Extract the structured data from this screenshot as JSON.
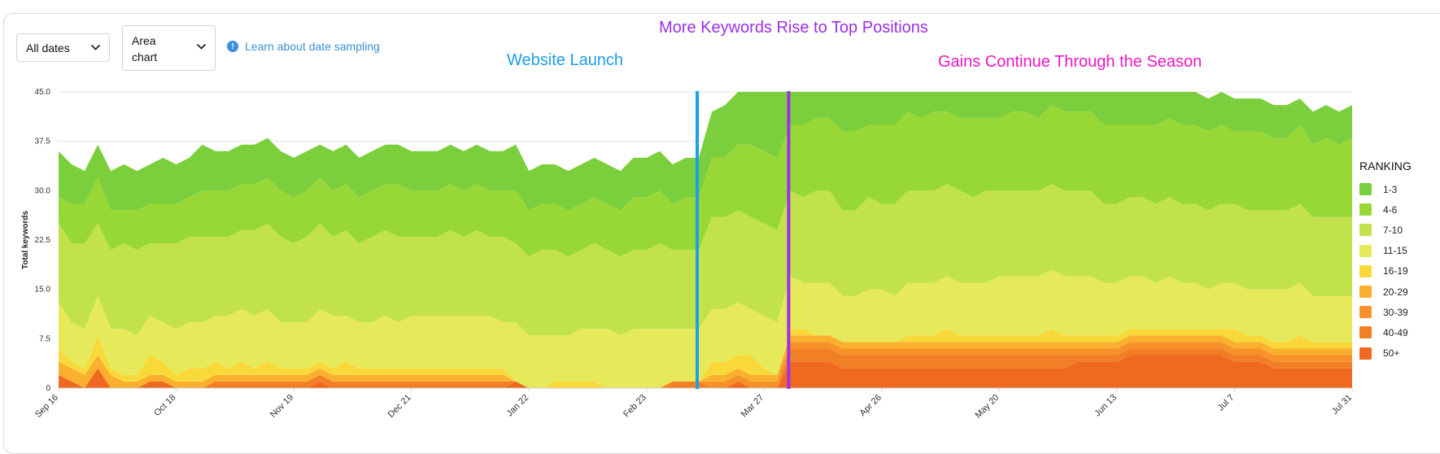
{
  "controls": {
    "dates_label": "All dates",
    "chart_type_label": "Area chart",
    "info_link": "Learn about date sampling"
  },
  "annotations": {
    "top": "More Keywords Rise to Top Positions",
    "launch": "Website Launch",
    "gains": "Gains Continue Through the Season"
  },
  "legend": {
    "title": "RANKING",
    "items": [
      {
        "label": "1-3",
        "color": "#7ccf3c"
      },
      {
        "label": "4-6",
        "color": "#98d836"
      },
      {
        "label": "7-10",
        "color": "#c2e24c"
      },
      {
        "label": "11-15",
        "color": "#e6ea5a"
      },
      {
        "label": "16-19",
        "color": "#f9d93a"
      },
      {
        "label": "20-29",
        "color": "#f9b02e"
      },
      {
        "label": "30-39",
        "color": "#f7922a"
      },
      {
        "label": "40-49",
        "color": "#f17f26"
      },
      {
        "label": "50+",
        "color": "#ef6a20"
      }
    ]
  },
  "chart_data": {
    "type": "area",
    "stacked": true,
    "title": "",
    "xlabel": "",
    "ylabel": "Total keywords",
    "ylim": [
      0,
      45
    ],
    "y_ticks": [
      "45.0",
      "37.5",
      "30.0",
      "22.5",
      "15.0",
      "7.5",
      "0"
    ],
    "x_tick_labels": [
      "Sep 16",
      "Oct 18",
      "Nov 19",
      "Dec 21",
      "Jan 22",
      "Feb 23",
      "Mar 27",
      "Apr 26",
      "May 20",
      "Jun 13",
      "Jul 7",
      "Jul 31"
    ],
    "x_tick_index": [
      0,
      9,
      18,
      27,
      36,
      45,
      54,
      63,
      72,
      81,
      90,
      99
    ],
    "num_points": 100,
    "launch_index": 49,
    "top_positions_index": 56,
    "series": [
      {
        "name": "50+",
        "values": [
          2,
          1,
          0,
          3,
          0,
          0,
          0,
          1,
          1,
          0,
          0,
          0,
          0,
          0,
          0,
          0,
          0,
          0,
          0,
          0,
          1,
          0,
          0,
          0,
          0,
          0,
          0,
          0,
          0,
          0,
          0,
          0,
          0,
          0,
          0,
          1,
          0,
          0,
          0,
          0,
          0,
          0,
          0,
          0,
          0,
          0,
          0,
          0,
          0,
          0,
          0,
          0,
          1,
          0,
          0,
          0,
          4,
          4,
          4,
          4,
          3,
          3,
          3,
          3,
          3,
          3,
          3,
          3,
          3,
          3,
          3,
          3,
          3,
          3,
          3,
          3,
          3,
          3,
          4,
          4,
          4,
          4,
          5,
          5,
          5,
          5,
          5,
          5,
          5,
          5,
          4,
          4,
          4,
          3,
          3,
          3,
          3,
          3,
          3,
          3
        ]
      },
      {
        "name": "40-49",
        "values": [
          0,
          0,
          0,
          0,
          0,
          0,
          0,
          0,
          0,
          0,
          0,
          0,
          1,
          1,
          1,
          1,
          1,
          1,
          1,
          1,
          1,
          1,
          1,
          1,
          1,
          1,
          1,
          1,
          1,
          1,
          1,
          1,
          1,
          1,
          1,
          0,
          0,
          0,
          0,
          0,
          0,
          0,
          0,
          0,
          0,
          0,
          0,
          1,
          1,
          1,
          0,
          0,
          0,
          0,
          0,
          0,
          2,
          2,
          2,
          2,
          2,
          2,
          2,
          2,
          2,
          2,
          2,
          2,
          2,
          2,
          2,
          2,
          2,
          2,
          2,
          2,
          2,
          2,
          1,
          1,
          1,
          1,
          1,
          1,
          1,
          1,
          1,
          1,
          1,
          1,
          1,
          1,
          1,
          1,
          1,
          1,
          1,
          1,
          1,
          1
        ]
      },
      {
        "name": "30-39",
        "values": [
          0,
          0,
          0,
          0,
          0,
          0,
          0,
          0,
          0,
          0,
          0,
          0,
          0,
          0,
          0,
          0,
          0,
          0,
          0,
          0,
          0,
          0,
          0,
          0,
          0,
          0,
          0,
          0,
          0,
          0,
          0,
          0,
          0,
          0,
          0,
          0,
          0,
          0,
          0,
          0,
          0,
          0,
          0,
          0,
          0,
          0,
          0,
          0,
          0,
          0,
          1,
          1,
          1,
          1,
          1,
          1,
          1,
          1,
          1,
          1,
          1,
          1,
          1,
          1,
          1,
          1,
          1,
          1,
          1,
          1,
          1,
          1,
          1,
          1,
          1,
          1,
          1,
          1,
          1,
          1,
          1,
          1,
          1,
          1,
          1,
          1,
          1,
          1,
          1,
          1,
          1,
          1,
          1,
          1,
          1,
          1,
          1,
          1,
          1,
          1
        ]
      },
      {
        "name": "20-29",
        "values": [
          2,
          2,
          2,
          2,
          2,
          1,
          1,
          1,
          1,
          1,
          1,
          1,
          1,
          1,
          1,
          1,
          1,
          1,
          1,
          1,
          1,
          1,
          1,
          1,
          1,
          1,
          1,
          1,
          1,
          1,
          1,
          1,
          1,
          1,
          1,
          0,
          0,
          0,
          0,
          0,
          0,
          0,
          0,
          0,
          0,
          0,
          0,
          0,
          0,
          0,
          1,
          1,
          1,
          1,
          1,
          1,
          1,
          1,
          1,
          1,
          1,
          1,
          1,
          1,
          1,
          1,
          1,
          1,
          1,
          1,
          1,
          1,
          1,
          1,
          1,
          1,
          1,
          1,
          1,
          1,
          1,
          1,
          1,
          1,
          1,
          1,
          1,
          1,
          1,
          1,
          1,
          1,
          1,
          1,
          1,
          1,
          1,
          1,
          1,
          1
        ]
      },
      {
        "name": "16-19",
        "values": [
          2,
          1,
          1,
          3,
          1,
          1,
          1,
          3,
          2,
          1,
          2,
          2,
          2,
          1,
          2,
          1,
          2,
          1,
          1,
          1,
          1,
          1,
          2,
          1,
          1,
          1,
          1,
          1,
          1,
          1,
          1,
          1,
          1,
          1,
          1,
          0,
          0,
          0,
          1,
          1,
          1,
          1,
          0,
          0,
          0,
          0,
          0,
          0,
          0,
          0,
          2,
          2,
          2,
          3,
          1,
          0,
          1,
          1,
          0,
          0,
          0,
          0,
          0,
          0,
          0,
          1,
          1,
          1,
          2,
          1,
          1,
          1,
          1,
          1,
          1,
          1,
          2,
          1,
          1,
          1,
          1,
          1,
          1,
          1,
          1,
          1,
          1,
          1,
          1,
          1,
          2,
          1,
          1,
          1,
          1,
          2,
          1,
          1,
          1,
          1
        ]
      },
      {
        "name": "11-15",
        "values": [
          7,
          6,
          6,
          6,
          6,
          7,
          6,
          6,
          6,
          7,
          7,
          7,
          7,
          8,
          8,
          8,
          8,
          7,
          7,
          7,
          8,
          8,
          7,
          7,
          7,
          8,
          7,
          8,
          8,
          8,
          8,
          8,
          8,
          8,
          7,
          9,
          8,
          8,
          7,
          7,
          8,
          8,
          9,
          8,
          9,
          9,
          9,
          8,
          8,
          8,
          8,
          8,
          8,
          7,
          8,
          8,
          8,
          7,
          8,
          8,
          7,
          7,
          8,
          8,
          7,
          8,
          8,
          8,
          8,
          8,
          8,
          8,
          9,
          9,
          9,
          9,
          9,
          9,
          9,
          9,
          8,
          8,
          8,
          8,
          7,
          8,
          7,
          7,
          6,
          7,
          7,
          7,
          7,
          8,
          8,
          8,
          7,
          7,
          7,
          7
        ]
      },
      {
        "name": "7-10",
        "values": [
          12,
          12,
          13,
          11,
          12,
          13,
          13,
          11,
          12,
          13,
          13,
          13,
          12,
          12,
          12,
          13,
          13,
          13,
          12,
          13,
          13,
          12,
          13,
          12,
          13,
          13,
          13,
          12,
          12,
          12,
          13,
          12,
          13,
          12,
          13,
          12,
          12,
          13,
          13,
          12,
          12,
          13,
          12,
          12,
          12,
          12,
          13,
          12,
          12,
          12,
          14,
          14,
          14,
          14,
          14,
          14,
          13,
          13,
          14,
          14,
          13,
          13,
          14,
          13,
          14,
          14,
          14,
          14,
          14,
          14,
          13,
          14,
          13,
          13,
          13,
          13,
          13,
          13,
          13,
          13,
          12,
          12,
          12,
          12,
          12,
          12,
          12,
          12,
          12,
          12,
          12,
          12,
          12,
          12,
          12,
          12,
          12,
          12,
          12,
          12
        ]
      },
      {
        "name": "4-6",
        "values": [
          4,
          6,
          6,
          7,
          6,
          5,
          6,
          6,
          6,
          6,
          6,
          7,
          7,
          7,
          7,
          7,
          7,
          7,
          7,
          7,
          7,
          7,
          7,
          7,
          7,
          7,
          8,
          7,
          7,
          7,
          7,
          7,
          7,
          7,
          7,
          8,
          7,
          7,
          7,
          7,
          7,
          7,
          7,
          7,
          8,
          8,
          8,
          7,
          8,
          8,
          9,
          9,
          10,
          11,
          11,
          11,
          10,
          11,
          11,
          11,
          12,
          12,
          11,
          12,
          12,
          12,
          11,
          12,
          11,
          11,
          12,
          11,
          11,
          12,
          12,
          11,
          12,
          12,
          12,
          12,
          12,
          12,
          11,
          11,
          12,
          12,
          12,
          12,
          12,
          12,
          11,
          12,
          12,
          11,
          11,
          12,
          11,
          12,
          11,
          12
        ]
      },
      {
        "name": "1-3",
        "values": [
          7,
          6,
          5,
          5,
          6,
          7,
          6,
          6,
          7,
          6,
          6,
          7,
          6,
          6,
          6,
          6,
          6,
          6,
          6,
          6,
          5,
          6,
          6,
          6,
          6,
          6,
          6,
          6,
          6,
          6,
          6,
          6,
          6,
          6,
          6,
          7,
          6,
          6,
          6,
          6,
          6,
          6,
          6,
          6,
          6,
          6,
          6,
          6,
          6,
          6,
          7,
          8,
          8,
          8,
          9,
          10,
          5,
          5,
          4,
          4,
          6,
          6,
          5,
          5,
          5,
          4,
          4,
          4,
          4,
          5,
          5,
          5,
          4,
          4,
          4,
          5,
          5,
          5,
          5,
          5,
          6,
          6,
          6,
          6,
          5,
          4,
          5,
          5,
          5,
          5,
          5,
          5,
          5,
          5,
          5,
          4,
          5,
          5,
          5,
          5
        ]
      }
    ]
  }
}
